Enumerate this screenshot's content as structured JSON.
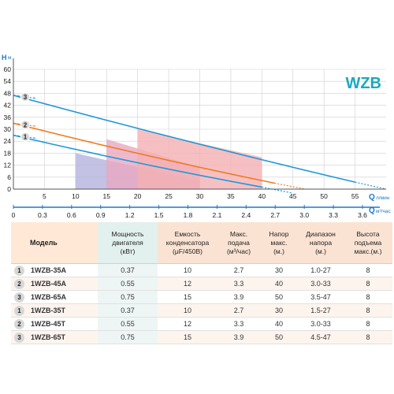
{
  "chart_data": {
    "type": "line",
    "title": "WZB",
    "ylabel": "H",
    "ylabel_unit": "м",
    "xlabel": "Q",
    "xlabel_unit": "л/мин",
    "x2label": "Q",
    "x2label_unit": "м³/час",
    "xlim": [
      0,
      60
    ],
    "ylim": [
      0,
      60
    ],
    "yticks": [
      0,
      6,
      12,
      18,
      24,
      30,
      36,
      42,
      48,
      54,
      60
    ],
    "xticks": [
      5,
      10,
      15,
      20,
      25,
      30,
      35,
      40,
      45,
      50,
      55
    ],
    "x2ticks": [
      "0",
      "0.3",
      "0.6",
      "0.9",
      "1.2",
      "1.5",
      "1.8",
      "2.1",
      "2.4",
      "2.7",
      "3.0",
      "3.3",
      "3.6"
    ],
    "grid": true,
    "series": [
      {
        "name": "1",
        "color": "#1f98d6",
        "x": [
          0,
          40
        ],
        "y": [
          27,
          1
        ],
        "dash_to": [
          45,
          -2
        ]
      },
      {
        "name": "2",
        "color": "#f07a1c",
        "x": [
          0,
          42
        ],
        "y": [
          33,
          3
        ],
        "dash_to": [
          47,
          0
        ]
      },
      {
        "name": "3",
        "color": "#1f98d6",
        "x": [
          0,
          55
        ],
        "y": [
          47,
          3.5
        ],
        "dash_to": [
          60,
          0
        ]
      }
    ],
    "regions": [
      {
        "color": "#b4b3de",
        "x": [
          10,
          30
        ],
        "y_top": [
          18,
          4
        ],
        "y_bottom": 0
      },
      {
        "color": "#e9a8c1",
        "x": [
          15,
          30
        ],
        "y_top": [
          25,
          11
        ],
        "y_bottom": 0
      },
      {
        "color": "#f4b0b4",
        "x": [
          20,
          40
        ],
        "y_top": [
          30,
          16
        ],
        "y_bottom": 0
      }
    ]
  },
  "table": {
    "headers": [
      "Модель",
      [
        "Мощность",
        "двигателя",
        "(кВт)"
      ],
      [
        "Емкость",
        "конденсатора",
        "(μF/450В)"
      ],
      [
        "Макс.",
        "подача",
        "(м³/час)"
      ],
      [
        "Напор",
        "макс.",
        "(м.)"
      ],
      [
        "Диапазон",
        "напора",
        "(м.)"
      ],
      [
        "Высота",
        "подъема",
        "макс.(м.)"
      ]
    ],
    "rows": [
      {
        "num": "1",
        "model": "1WZB-35A",
        "power": "0.37",
        "capacitor": "10",
        "flow": "2.7",
        "head": "30",
        "range": "1.0-27",
        "lift": "8"
      },
      {
        "num": "2",
        "model": "1WZB-45A",
        "power": "0.55",
        "capacitor": "12",
        "flow": "3.3",
        "head": "40",
        "range": "3.0-33",
        "lift": "8"
      },
      {
        "num": "3",
        "model": "1WZB-65A",
        "power": "0.75",
        "capacitor": "15",
        "flow": "3.9",
        "head": "50",
        "range": "3.5-47",
        "lift": "8"
      },
      {
        "num": "1",
        "model": "1WZB-35T",
        "power": "0.37",
        "capacitor": "10",
        "flow": "2.7",
        "head": "30",
        "range": "1.5-27",
        "lift": "8"
      },
      {
        "num": "2",
        "model": "1WZB-45T",
        "power": "0.55",
        "capacitor": "12",
        "flow": "3.3",
        "head": "40",
        "range": "3.0-33",
        "lift": "8"
      },
      {
        "num": "3",
        "model": "1WZB-65T",
        "power": "0.75",
        "capacitor": "15",
        "flow": "3.9",
        "head": "50",
        "range": "4.5-47",
        "lift": "8"
      }
    ]
  }
}
